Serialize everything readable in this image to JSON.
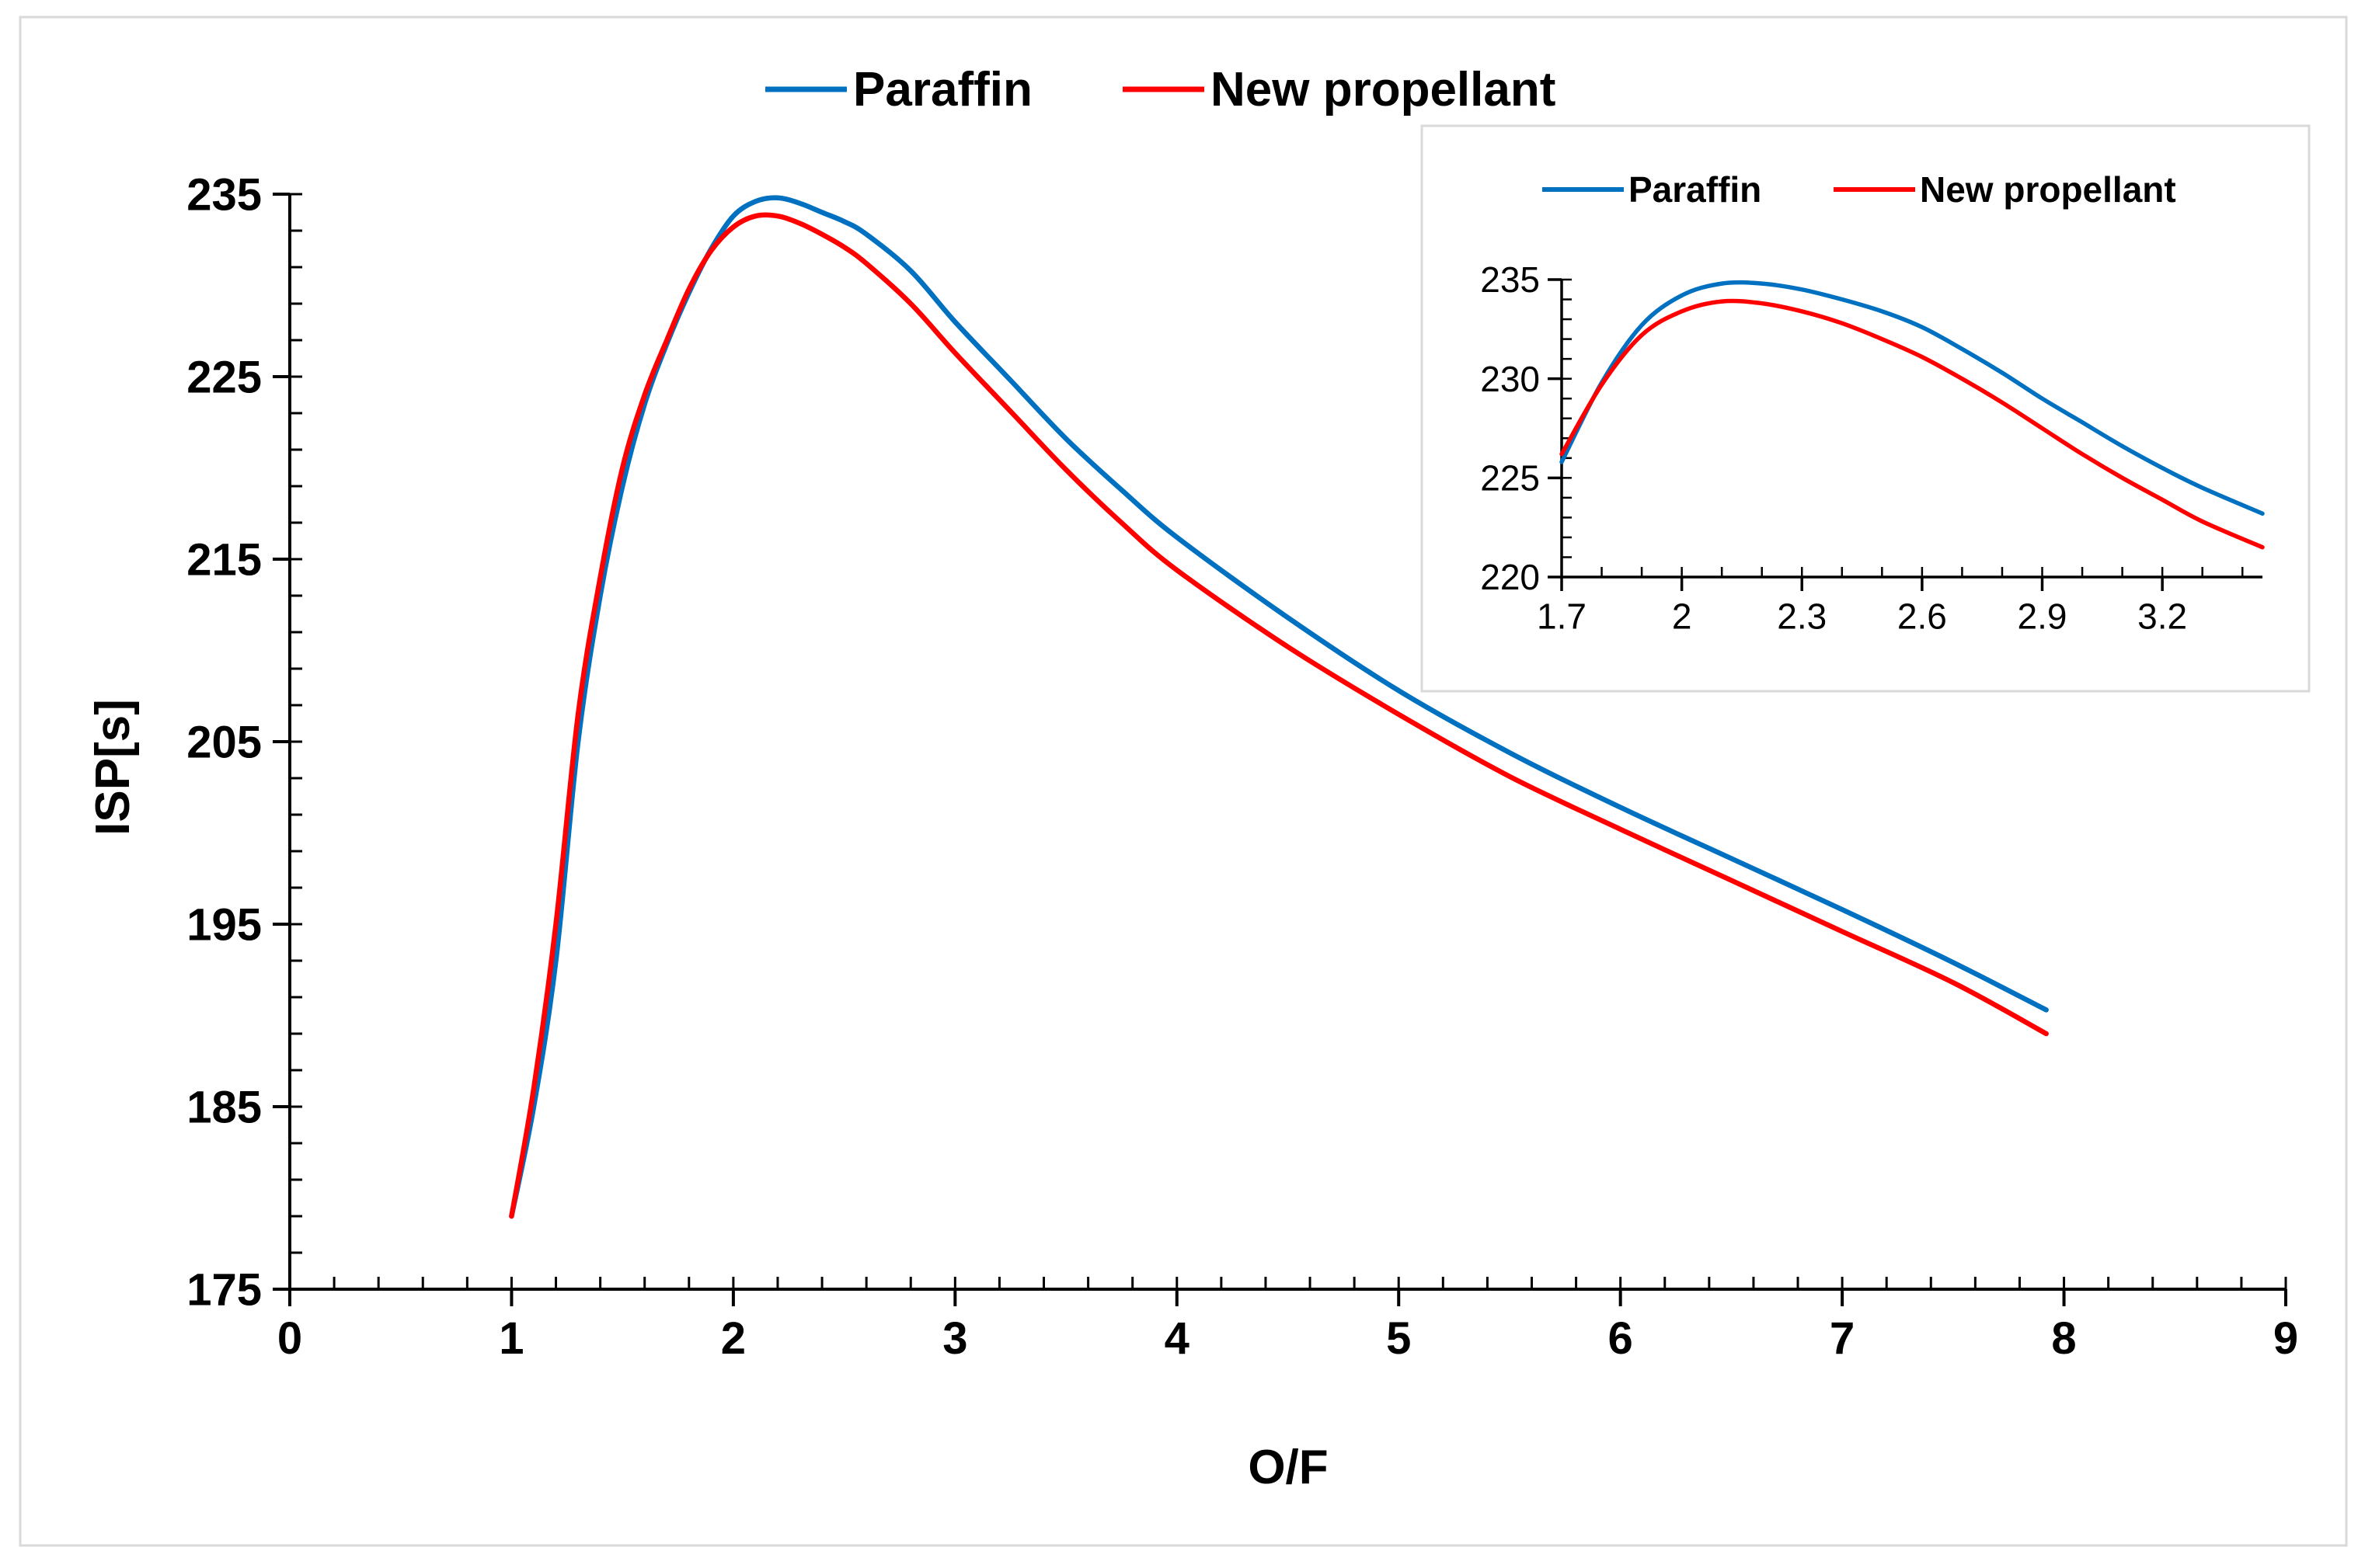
{
  "colors": {
    "paraffin": "#0070C0",
    "new_propellant": "#FF0000",
    "axis": "#000000",
    "frame": "#D9D9D9"
  },
  "chart_data": [
    {
      "type": "line",
      "role": "main",
      "title": "",
      "xlabel": "O/F",
      "ylabel": "ISP[s]",
      "xlim": [
        0,
        9
      ],
      "ylim": [
        175,
        235
      ],
      "xticks": [
        0,
        1,
        2,
        3,
        4,
        5,
        6,
        7,
        8,
        9
      ],
      "yticks": [
        175,
        185,
        195,
        205,
        215,
        225,
        235
      ],
      "grid": false,
      "legend_position": "top",
      "series": [
        {
          "name": "Paraffin",
          "color_key": "paraffin",
          "x": [
            1.0,
            1.1,
            1.2,
            1.3,
            1.4,
            1.5,
            1.6,
            1.7,
            1.8,
            1.9,
            2.0,
            2.1,
            2.2,
            2.3,
            2.4,
            2.5,
            2.6,
            2.8,
            3.0,
            3.25,
            3.5,
            3.75,
            4.0,
            4.5,
            5.0,
            5.5,
            6.0,
            6.5,
            7.0,
            7.5,
            7.92
          ],
          "y": [
            179.0,
            185.0,
            193.0,
            205.0,
            213.0,
            219.0,
            223.5,
            226.8,
            229.6,
            232.0,
            233.8,
            234.6,
            234.8,
            234.5,
            234.0,
            233.5,
            232.8,
            230.8,
            228.0,
            224.8,
            221.6,
            218.8,
            216.2,
            211.8,
            207.8,
            204.4,
            201.4,
            198.6,
            195.8,
            192.9,
            190.3
          ]
        },
        {
          "name": "New propellant",
          "color_key": "new_propellant",
          "x": [
            1.0,
            1.1,
            1.2,
            1.3,
            1.4,
            1.5,
            1.6,
            1.7,
            1.8,
            1.9,
            2.0,
            2.1,
            2.2,
            2.3,
            2.4,
            2.5,
            2.6,
            2.8,
            3.0,
            3.25,
            3.5,
            3.75,
            4.0,
            4.5,
            5.0,
            5.5,
            6.0,
            6.5,
            7.0,
            7.5,
            7.92
          ],
          "y": [
            179.0,
            186.0,
            195.0,
            206.5,
            214.0,
            220.0,
            224.0,
            227.0,
            229.8,
            231.9,
            233.2,
            233.8,
            233.8,
            233.4,
            232.8,
            232.1,
            231.2,
            229.0,
            226.3,
            223.1,
            219.9,
            217.0,
            214.4,
            210.2,
            206.5,
            203.1,
            200.2,
            197.4,
            194.6,
            191.8,
            189.0
          ]
        }
      ]
    },
    {
      "type": "line",
      "role": "inset",
      "title": "",
      "xlabel": "",
      "ylabel": "",
      "xlim": [
        1.7,
        3.45
      ],
      "ylim": [
        220,
        235
      ],
      "xticks": [
        1.7,
        2,
        2.3,
        2.6,
        2.9,
        3.2
      ],
      "xtick_labels": [
        "1.7",
        "2",
        "2.3",
        "2.6",
        "2.9",
        "3.2"
      ],
      "yticks": [
        220,
        225,
        230,
        235
      ],
      "grid": false,
      "legend_position": "top",
      "series": [
        {
          "name": "Paraffin",
          "color_key": "paraffin",
          "x": [
            1.7,
            1.8,
            1.9,
            2.0,
            2.1,
            2.2,
            2.3,
            2.4,
            2.5,
            2.6,
            2.7,
            2.8,
            2.9,
            3.0,
            3.1,
            3.2,
            3.3,
            3.45
          ],
          "y": [
            225.8,
            229.8,
            232.7,
            234.2,
            234.8,
            234.8,
            234.5,
            234.0,
            233.4,
            232.6,
            231.5,
            230.3,
            229.0,
            227.8,
            226.6,
            225.5,
            224.5,
            223.2
          ]
        },
        {
          "name": "New propellant",
          "color_key": "new_propellant",
          "x": [
            1.7,
            1.8,
            1.9,
            2.0,
            2.1,
            2.2,
            2.3,
            2.4,
            2.5,
            2.6,
            2.7,
            2.8,
            2.9,
            3.0,
            3.1,
            3.2,
            3.3,
            3.45
          ],
          "y": [
            226.2,
            229.7,
            232.2,
            233.4,
            233.9,
            233.8,
            233.4,
            232.8,
            232.0,
            231.1,
            230.0,
            228.8,
            227.5,
            226.2,
            225.0,
            223.9,
            222.8,
            221.5
          ]
        }
      ]
    }
  ]
}
